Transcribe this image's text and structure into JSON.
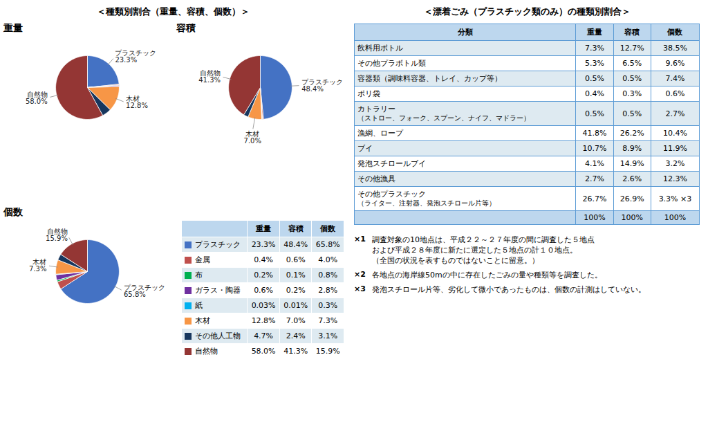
{
  "chart_data": [
    {
      "type": "pie",
      "title": "重量",
      "categories": [
        "プラスチック",
        "金属",
        "布",
        "ガラス・陶器",
        "紙",
        "木材",
        "その他人工物",
        "自然物"
      ],
      "values": [
        23.3,
        0.4,
        0.2,
        0.6,
        0.03,
        12.8,
        4.7,
        58.0
      ],
      "colors": [
        "#4472C4",
        "#C0504D",
        "#00B050",
        "#7030A0",
        "#00B0F0",
        "#F79646",
        "#17375E",
        "#943634"
      ],
      "annotations": [
        {
          "category": "プラスチック",
          "text": "プラスチック\n23.3%"
        },
        {
          "category": "自然物",
          "text": "自然物\n58.0%"
        },
        {
          "category": "木材",
          "text": "木材\n12.8%"
        }
      ]
    },
    {
      "type": "pie",
      "title": "容積",
      "categories": [
        "プラスチック",
        "金属",
        "布",
        "ガラス・陶器",
        "紙",
        "木材",
        "その他人工物",
        "自然物"
      ],
      "values": [
        48.4,
        0.6,
        0.1,
        0.2,
        0.01,
        7.0,
        2.4,
        41.3
      ],
      "colors": [
        "#4472C4",
        "#C0504D",
        "#00B050",
        "#7030A0",
        "#00B0F0",
        "#F79646",
        "#17375E",
        "#943634"
      ],
      "annotations": [
        {
          "category": "プラスチック",
          "text": "プラスチック\n48.4%"
        },
        {
          "category": "自然物",
          "text": "自然物\n41.3%"
        },
        {
          "category": "木材",
          "text": "木材\n7.0%"
        }
      ]
    },
    {
      "type": "pie",
      "title": "個数",
      "categories": [
        "プラスチック",
        "金属",
        "布",
        "ガラス・陶器",
        "紙",
        "木材",
        "その他人工物",
        "自然物"
      ],
      "values": [
        65.8,
        4.0,
        0.8,
        2.8,
        0.3,
        7.3,
        3.1,
        15.9
      ],
      "colors": [
        "#4472C4",
        "#C0504D",
        "#00B050",
        "#7030A0",
        "#00B0F0",
        "#F79646",
        "#17375E",
        "#943634"
      ],
      "annotations": [
        {
          "category": "プラスチック",
          "text": "プラスチック\n65.8%"
        },
        {
          "category": "自然物",
          "text": "自然物\n15.9%"
        },
        {
          "category": "木材",
          "text": "木材\n7.3%"
        }
      ]
    },
    {
      "type": "table",
      "title": "＜種類別割合（重量、容積、個数）＞",
      "columns": [
        "重量",
        "容積",
        "個数"
      ],
      "categories": [
        "プラスチック",
        "金属",
        "布",
        "ガラス・陶器",
        "紙",
        "木材",
        "その他人工物",
        "自然物"
      ],
      "colors": [
        "#4472C4",
        "#C0504D",
        "#00B050",
        "#7030A0",
        "#00B0F0",
        "#F79646",
        "#17375E",
        "#943634"
      ],
      "values": [
        [
          23.3,
          48.4,
          65.8
        ],
        [
          0.4,
          0.6,
          4.0
        ],
        [
          0.2,
          0.1,
          0.8
        ],
        [
          0.6,
          0.2,
          2.8
        ],
        [
          0.03,
          0.01,
          0.3
        ],
        [
          12.8,
          7.0,
          7.3
        ],
        [
          4.7,
          2.4,
          3.1
        ],
        [
          58.0,
          41.3,
          15.9
        ]
      ],
      "value_labels": [
        [
          "23.3%",
          "48.4%",
          "65.8%"
        ],
        [
          "0.4%",
          "0.6%",
          "4.0%"
        ],
        [
          "0.2%",
          "0.1%",
          "0.8%"
        ],
        [
          "0.6%",
          "0.2%",
          "2.8%"
        ],
        [
          "0.03%",
          "0.01%",
          "0.3%"
        ],
        [
          "12.8%",
          "7.0%",
          "7.3%"
        ],
        [
          "4.7%",
          "2.4%",
          "3.1%"
        ],
        [
          "58.0%",
          "41.3%",
          "15.9%"
        ]
      ]
    },
    {
      "type": "table",
      "title": "＜漂着ごみ（プラスチック類のみ）の種類別割合＞",
      "columns": [
        "分類",
        "重量",
        "容積",
        "個数"
      ],
      "categories": [
        "飲料用ボトル",
        "その他プラボトル類",
        "容器類（調味料容器、トレイ、カップ等）",
        "ポリ袋",
        "カトラリー\n（ストロー、フォーク、スプーン、ナイフ、マドラー）",
        "漁網、ロープ",
        "ブイ",
        "発泡スチロールブイ",
        "その他漁具",
        "その他プラスチック\n（ライター、注射器、発泡スチロール片等）",
        null
      ],
      "values": [
        [
          7.3,
          12.7,
          38.5
        ],
        [
          5.3,
          6.5,
          9.6
        ],
        [
          0.5,
          0.5,
          7.4
        ],
        [
          0.4,
          0.3,
          0.6
        ],
        [
          0.5,
          0.5,
          2.7
        ],
        [
          41.8,
          26.2,
          10.4
        ],
        [
          10.7,
          8.9,
          11.9
        ],
        [
          4.1,
          14.9,
          3.2
        ],
        [
          2.7,
          2.6,
          12.3
        ],
        [
          26.7,
          26.9,
          3.3
        ],
        [
          100,
          100,
          100
        ]
      ],
      "value_labels": [
        [
          "7.3%",
          "12.7%",
          "38.5%"
        ],
        [
          "5.3%",
          "6.5%",
          "9.6%"
        ],
        [
          "0.5%",
          "0.5%",
          "7.4%"
        ],
        [
          "0.4%",
          "0.3%",
          "0.6%"
        ],
        [
          "0.5%",
          "0.5%",
          "2.7%"
        ],
        [
          "41.8%",
          "26.2%",
          "10.4%"
        ],
        [
          "10.7%",
          "8.9%",
          "11.9%"
        ],
        [
          "4.1%",
          "14.9%",
          "3.2%"
        ],
        [
          "2.7%",
          "2.6%",
          "12.3%"
        ],
        [
          "26.7%",
          "26.9%",
          "3.3% ×3"
        ],
        [
          "100%",
          "100%",
          "100%"
        ]
      ],
      "annotations": [
        {
          "label": "×1",
          "text": "調査対象の10地点は、平成２２～２７年度の間に調査した５地点\nおよび平成２８年度に新たに選定した５地点の計１０地点。\n（全国の状況を表すものではないことに留意。）"
        },
        {
          "label": "×2",
          "text": "各地点の海岸線50mの中に存在したごみの量や種類等を調査した。"
        },
        {
          "label": "×3",
          "text": "発泡スチロール片等、劣化して微小であったものは、個数の計測はしていない。"
        }
      ]
    }
  ]
}
